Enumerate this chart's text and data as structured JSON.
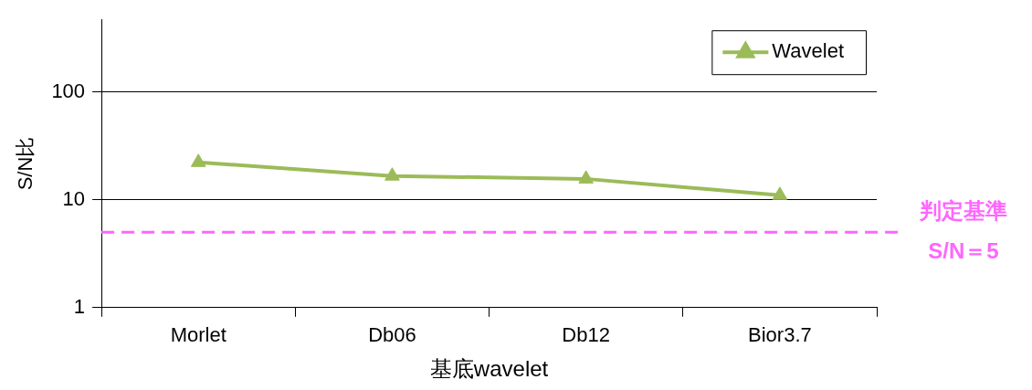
{
  "chart_data": {
    "type": "line",
    "xlabel": "基底wavelet",
    "ylabel": "S/N比",
    "categories": [
      "Morlet",
      "Db06",
      "Db12",
      "Bior3.7"
    ],
    "series": [
      {
        "name": "Wavelet",
        "color": "#9bbb59",
        "values": [
          22.2,
          16.6,
          15.6,
          11.0
        ]
      }
    ],
    "log": "y",
    "ylim": [
      1,
      470
    ],
    "yticks": [
      1,
      10,
      100
    ],
    "grid": "y",
    "legend": "top right",
    "marker": "triangle",
    "line_style": "solid",
    "ref_lines": [
      {
        "axis": "y",
        "value": 5,
        "label": "判定基準\nS/N＝5",
        "color": "#ff66ff",
        "line_style": "dashed"
      }
    ]
  }
}
